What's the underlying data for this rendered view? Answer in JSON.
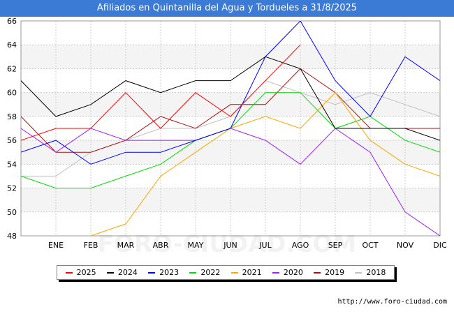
{
  "title": "Afiliados en Quintanilla del Agua y Tordueles a 31/8/2025",
  "source": "http://www.foro-ciudad.com",
  "watermark": "FORO-CIUDAD.COM",
  "colors": {
    "header": "#3b7bd6",
    "band": "#f4f4f4",
    "grid": "#cccccc"
  },
  "chart_data": {
    "type": "line",
    "title": "Afiliados en Quintanilla del Agua y Tordueles a 31/8/2025",
    "xlabel": "",
    "ylabel": "",
    "categories": [
      "",
      "ENE",
      "FEB",
      "MAR",
      "ABR",
      "MAY",
      "JUN",
      "JUL",
      "AGO",
      "SEP",
      "OCT",
      "NOV",
      "DIC"
    ],
    "ylim": [
      48,
      66
    ],
    "yticks": [
      48,
      50,
      52,
      54,
      56,
      58,
      60,
      62,
      64,
      66
    ],
    "grid": true,
    "legend_position": "bottom",
    "series": [
      {
        "name": "2025",
        "color": "#ff0000",
        "values": [
          56,
          57,
          57,
          60,
          57,
          60,
          58,
          61,
          64,
          null,
          null,
          null,
          null
        ]
      },
      {
        "name": "2024",
        "color": "#000000",
        "values": [
          61,
          58,
          59,
          61,
          60,
          61,
          61,
          63,
          62,
          57,
          57,
          57,
          56
        ]
      },
      {
        "name": "2023",
        "color": "#0000ff",
        "values": [
          55,
          56,
          54,
          55,
          55,
          56,
          57,
          63,
          66,
          61,
          58,
          63,
          61
        ]
      },
      {
        "name": "2022",
        "color": "#00dd00",
        "values": [
          53,
          52,
          52,
          53,
          54,
          56,
          57,
          60,
          60,
          57,
          58,
          56,
          55
        ]
      },
      {
        "name": "2021",
        "color": "#ffa500",
        "values": [
          null,
          null,
          48,
          49,
          53,
          55,
          57,
          58,
          57,
          60,
          56,
          54,
          53
        ]
      },
      {
        "name": "2020",
        "color": "#a020f0",
        "values": [
          57,
          55,
          57,
          56,
          56,
          56,
          57,
          56,
          54,
          57,
          55,
          50,
          48
        ]
      },
      {
        "name": "2019",
        "color": "#aa1111",
        "values": [
          58,
          55,
          55,
          56,
          58,
          57,
          59,
          59,
          62,
          60,
          57,
          57,
          57
        ]
      },
      {
        "name": "2018",
        "color": "#c0c0c0",
        "values": [
          53,
          53,
          55,
          56,
          57,
          57,
          58,
          61,
          60,
          59,
          60,
          59,
          58
        ]
      }
    ]
  }
}
